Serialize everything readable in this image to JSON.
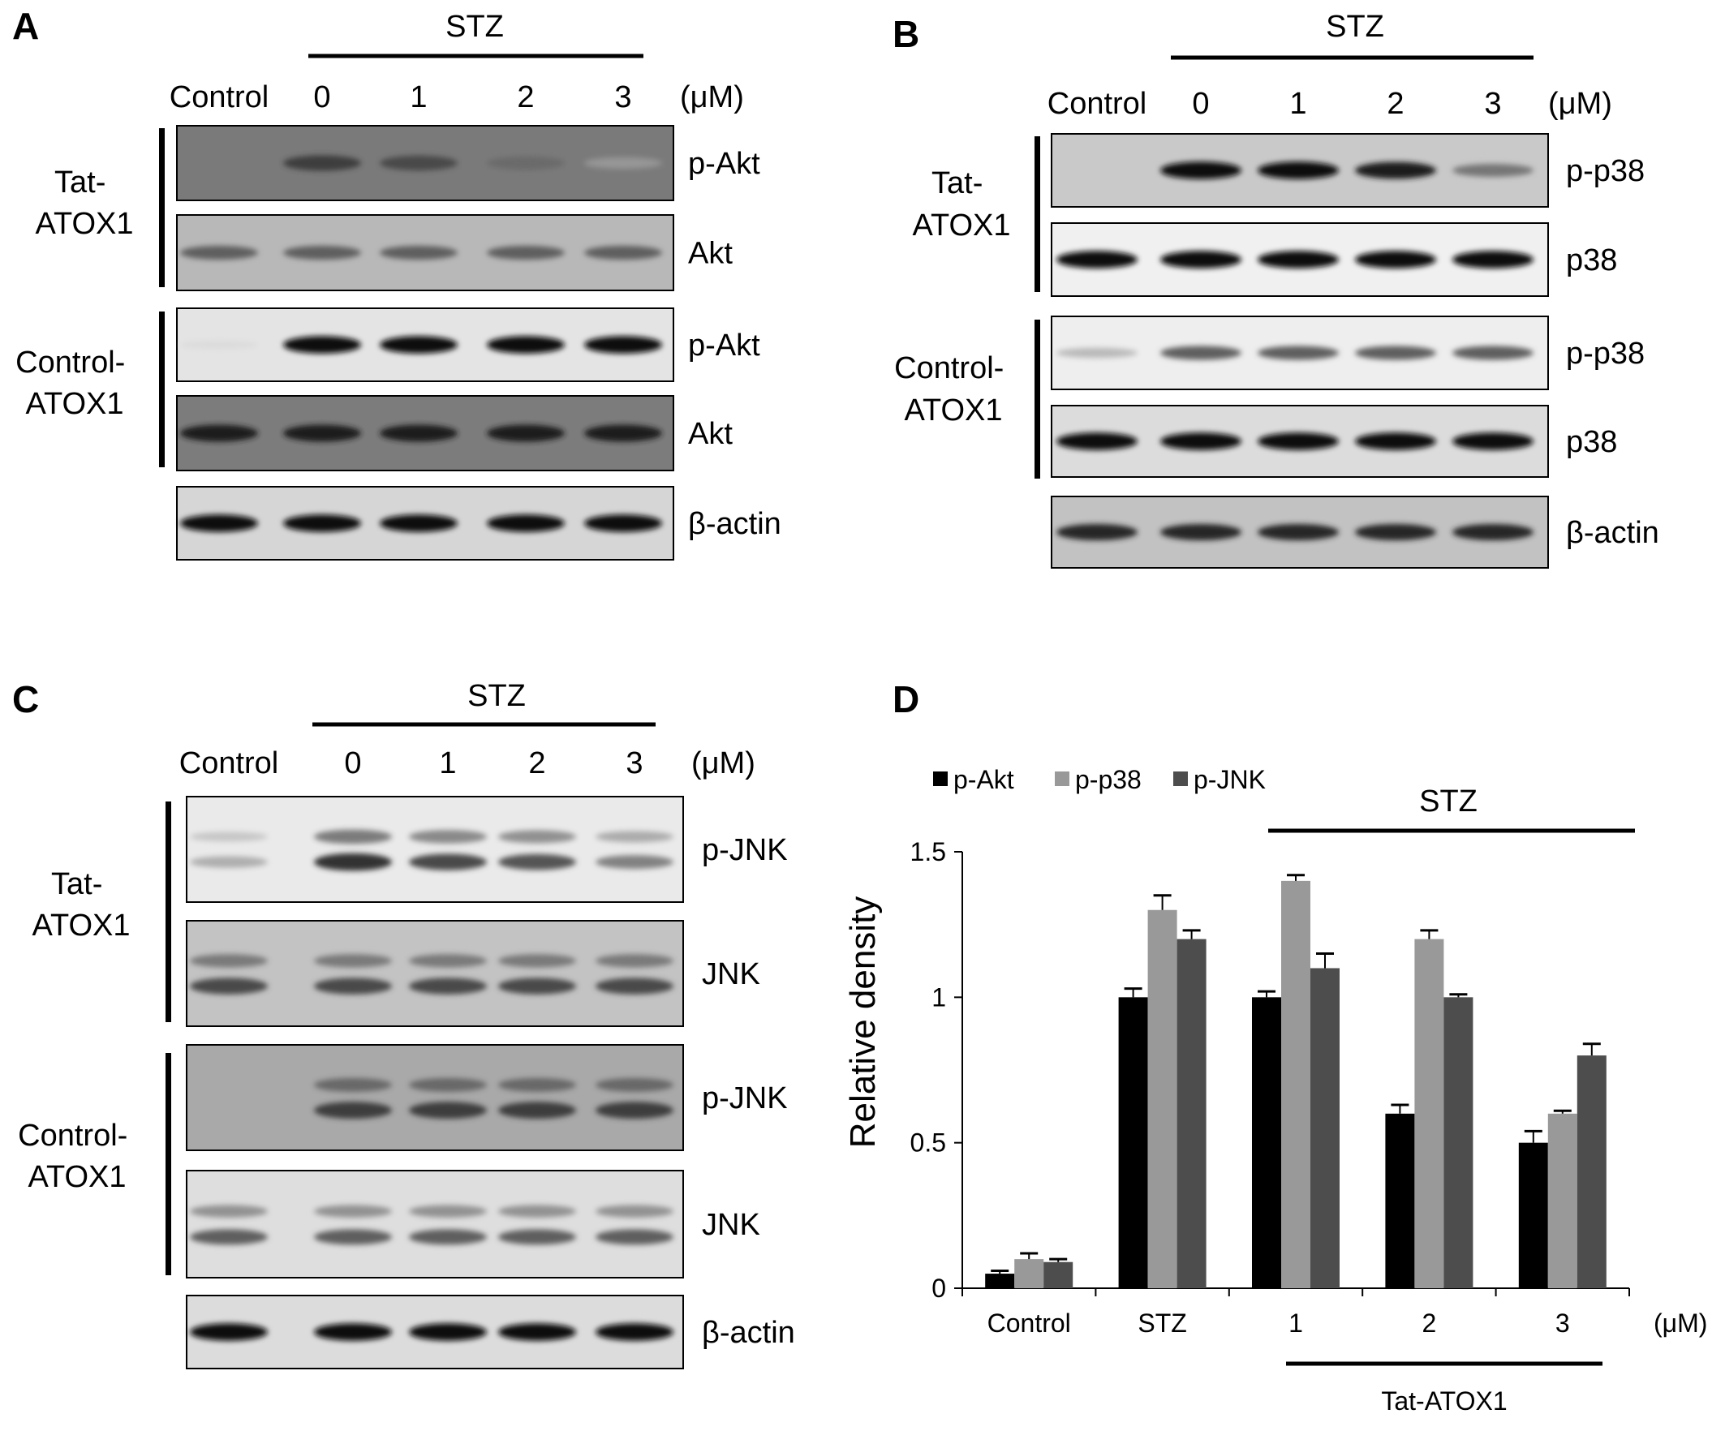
{
  "panels": {
    "A": {
      "letter": "A",
      "treatment": "STZ",
      "lanes": [
        "Control",
        "0",
        "1",
        "2",
        "3"
      ],
      "unit": "(μM)",
      "groups": [
        "Tat-\nATOX1",
        "Control-\nATOX1"
      ],
      "blots": [
        {
          "label": "p-Akt",
          "intensity": [
            0.0,
            0.75,
            0.7,
            0.55,
            0.35
          ]
        },
        {
          "label": "Akt",
          "intensity": [
            0.6,
            0.6,
            0.6,
            0.6,
            0.6
          ]
        },
        {
          "label": "p-Akt",
          "intensity": [
            0.05,
            0.95,
            0.95,
            0.95,
            0.95
          ]
        },
        {
          "label": "Akt",
          "intensity": [
            0.9,
            0.9,
            0.9,
            0.9,
            0.9
          ]
        },
        {
          "label": "β-actin",
          "intensity": [
            0.95,
            0.95,
            0.95,
            0.95,
            0.95
          ]
        }
      ]
    },
    "B": {
      "letter": "B",
      "treatment": "STZ",
      "lanes": [
        "Control",
        "0",
        "1",
        "2",
        "3"
      ],
      "unit": "(μM)",
      "groups": [
        "Tat-\nATOX1",
        "Control-\nATOX1"
      ],
      "blots": [
        {
          "label": "p-p38",
          "intensity": [
            0.0,
            0.95,
            0.95,
            0.9,
            0.5
          ]
        },
        {
          "label": "p38",
          "intensity": [
            0.95,
            0.95,
            0.95,
            0.95,
            0.95
          ]
        },
        {
          "label": "p-p38",
          "intensity": [
            0.2,
            0.6,
            0.6,
            0.6,
            0.6
          ]
        },
        {
          "label": "p38",
          "intensity": [
            0.95,
            0.95,
            0.95,
            0.95,
            0.95
          ]
        },
        {
          "label": "β-actin",
          "intensity": [
            0.85,
            0.85,
            0.85,
            0.85,
            0.85
          ]
        }
      ]
    },
    "C": {
      "letter": "C",
      "treatment": "STZ",
      "lanes": [
        "Control",
        "0",
        "1",
        "2",
        "3"
      ],
      "unit": "(μM)",
      "groups": [
        "Tat-\nATOX1",
        "Control-\nATOX1"
      ],
      "blots": [
        {
          "label": "p-JNK",
          "intensity": [
            0.25,
            0.8,
            0.7,
            0.65,
            0.45
          ]
        },
        {
          "label": "JNK",
          "intensity": [
            0.7,
            0.7,
            0.7,
            0.7,
            0.7
          ]
        },
        {
          "label": "p-JNK",
          "intensity": [
            0.0,
            0.75,
            0.75,
            0.75,
            0.75
          ]
        },
        {
          "label": "JNK",
          "intensity": [
            0.6,
            0.6,
            0.6,
            0.6,
            0.6
          ]
        },
        {
          "label": "β-actin",
          "intensity": [
            0.95,
            0.95,
            0.95,
            0.95,
            0.95
          ]
        }
      ]
    },
    "D": {
      "letter": "D",
      "treatment": "STZ",
      "unit": "(μM)",
      "group_label": "Tat-ATOX1"
    }
  },
  "colors": {
    "p_akt": "#000000",
    "p_p38": "#999999",
    "p_jnk": "#4d4d4d"
  },
  "chart_data": {
    "type": "bar",
    "title": "",
    "xlabel": "",
    "ylabel": "Relative density",
    "ylim": [
      0,
      1.5
    ],
    "yticks": [
      0,
      0.5,
      1,
      1.5
    ],
    "ytick_labels": [
      "0",
      "0.5",
      "1",
      "1.5"
    ],
    "categories": [
      "Control",
      "STZ",
      "1",
      "2",
      "3"
    ],
    "legend_placement": "top-left",
    "series": [
      {
        "name": "p-Akt",
        "values": [
          0.05,
          1.0,
          1.0,
          0.6,
          0.5
        ],
        "errors": [
          0.01,
          0.03,
          0.02,
          0.03,
          0.04
        ]
      },
      {
        "name": "p-p38",
        "values": [
          0.1,
          1.3,
          1.4,
          1.2,
          0.6
        ],
        "errors": [
          0.02,
          0.05,
          0.02,
          0.03,
          0.01
        ]
      },
      {
        "name": "p-JNK",
        "values": [
          0.09,
          1.2,
          1.1,
          1.0,
          0.8
        ],
        "errors": [
          0.01,
          0.03,
          0.05,
          0.01,
          0.04
        ]
      }
    ]
  }
}
